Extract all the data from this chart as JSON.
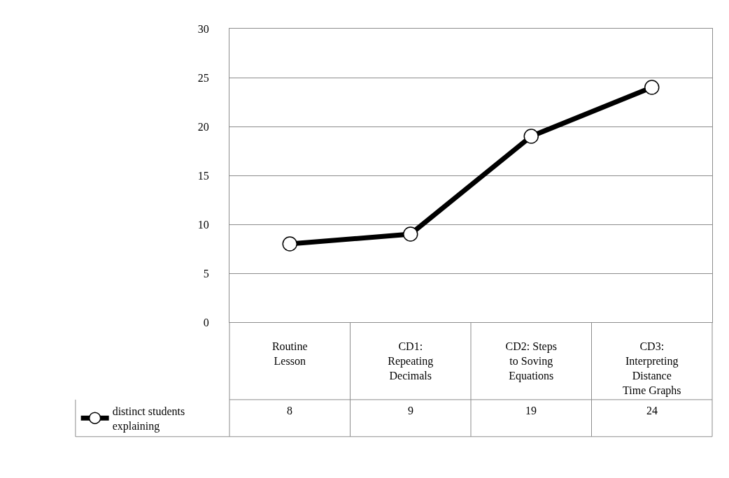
{
  "chart_data": {
    "type": "line",
    "categories": [
      "Routine Lesson",
      "CD1: Repeating Decimals",
      "CD2: Steps to Soving Equations",
      "CD3: Interpreting Distance Time Graphs"
    ],
    "series": [
      {
        "name": "distinct students explaining",
        "color": "#000000",
        "values": [
          8,
          9,
          19,
          24
        ]
      }
    ],
    "ylim": [
      0,
      30
    ],
    "yticks": [
      0,
      5,
      10,
      15,
      20,
      25,
      30
    ],
    "grid": "y",
    "legend": "bottom left",
    "marker": "circle",
    "line_style": "solid",
    "data_labels": true
  }
}
